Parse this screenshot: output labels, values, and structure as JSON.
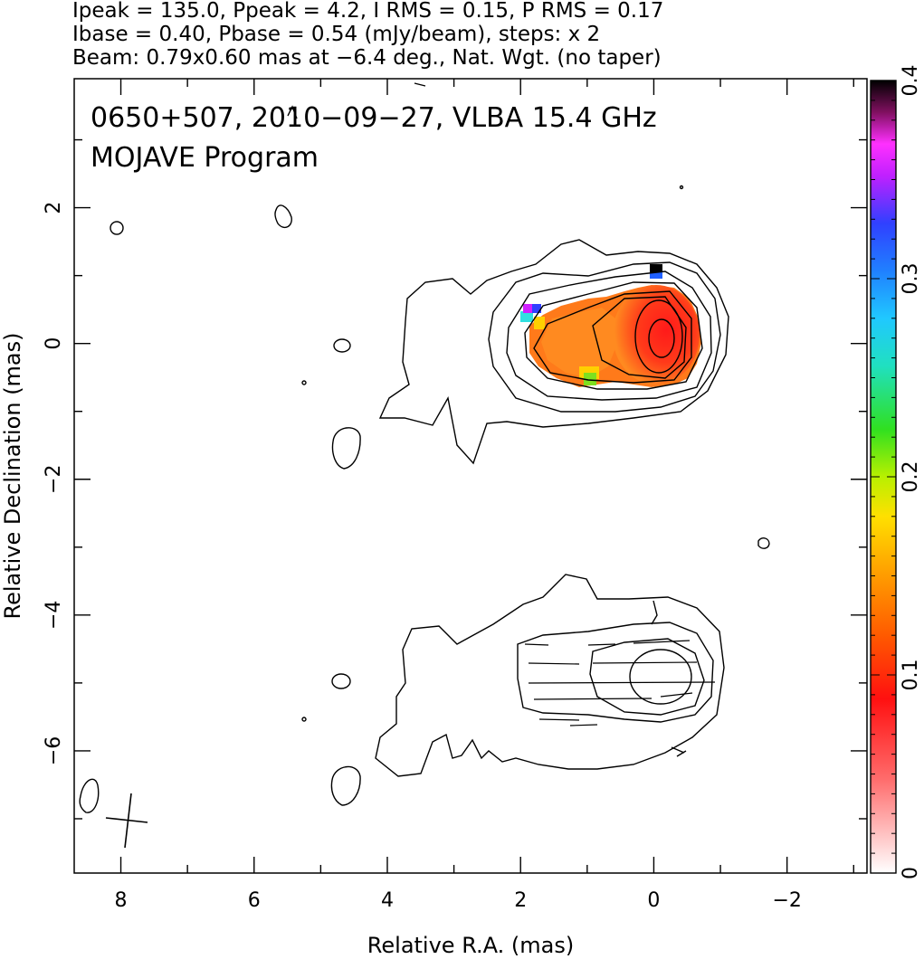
{
  "header": {
    "line1": "Ipeak = 135.0, Ppeak = 4.2, I RMS = 0.15, P RMS = 0.17",
    "line2": "Ibase = 0.40, Pbase = 0.54 (mJy/beam), steps: x 2",
    "line3": "Beam: 0.79x0.60 mas at −6.4 deg., Nat. Wgt. (no taper)"
  },
  "chart_data": {
    "type": "heatmap",
    "title": "0650+507, 2010−09−27, VLBA 15.4 GHz",
    "subtitle": "MOJAVE Program",
    "xlabel": "Relative R.A. (mas)",
    "ylabel": "Relative Declination (mas)",
    "xlim": [
      8.7,
      -3.2
    ],
    "ylim": [
      -7.8,
      3.9
    ],
    "x_ticks": [
      "8",
      "6",
      "4",
      "2",
      "0",
      "−2"
    ],
    "y_ticks": [
      "2",
      "0",
      "−2",
      "−4",
      "−6"
    ],
    "colorbar": {
      "range": [
        0,
        0.4
      ],
      "tick_labels": [
        "0",
        "0.1",
        "0.2",
        "0.3",
        "0.4"
      ],
      "tick_values": [
        0,
        0.1,
        0.2,
        0.3,
        0.4
      ]
    },
    "series": [
      {
        "component": "top_panel",
        "center": [
          0,
          0
        ],
        "contour_levels": 8
      },
      {
        "component": "bottom_panel",
        "center": [
          0,
          -5.0
        ],
        "contour_levels": 4
      }
    ]
  }
}
